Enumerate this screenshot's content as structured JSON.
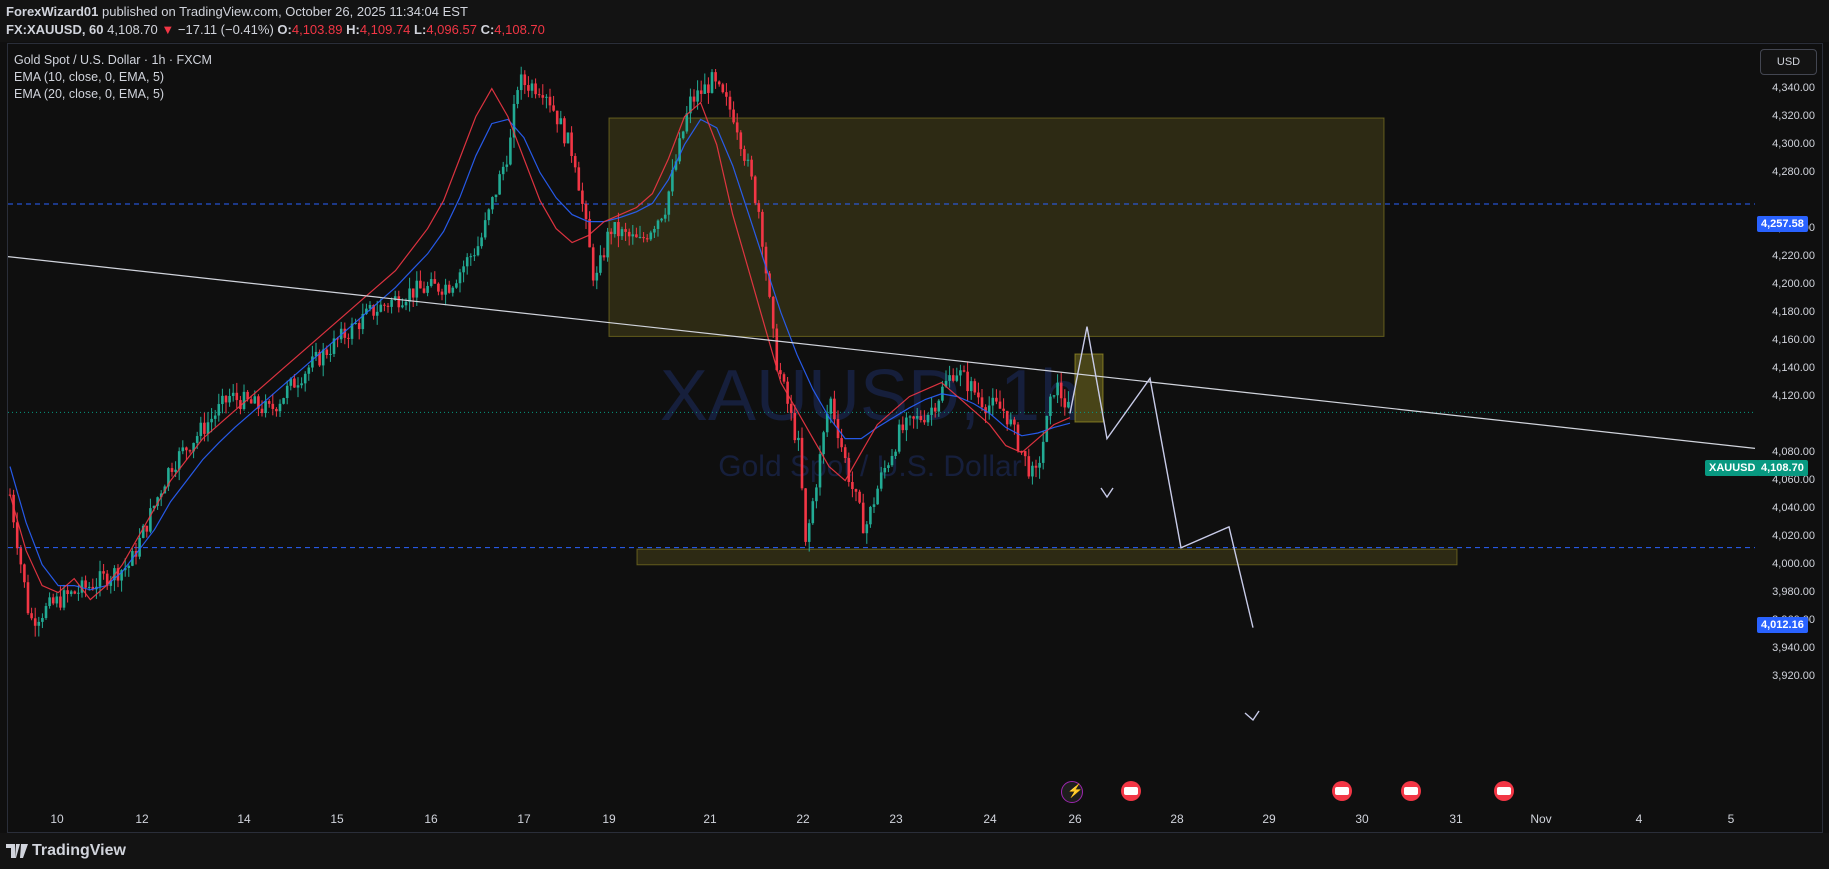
{
  "header": {
    "author": "ForexWizard01",
    "published_text": "published on TradingView.com, October 26, 2025 11:34:04 EST",
    "symbol": "FX:XAUUSD, 60",
    "last": "4,108.70",
    "change_arrow": "▼",
    "change": "−17.11 (−0.41%)",
    "open_label": "O:",
    "open": "4,103.89",
    "high_label": "H:",
    "high": "4,109.74",
    "low_label": "L:",
    "low": "4,096.57",
    "close_label": "C:",
    "close": "4,108.70"
  },
  "legend": {
    "title": "Gold Spot / U.S. Dollar · 1h · FXCM",
    "ema1": "EMA (10, close, 0, EMA, 5)",
    "ema2": "EMA (20, close, 0, EMA, 5)"
  },
  "currency_button": "USD",
  "watermark": {
    "symbol": "XAUUSD, 1h",
    "name": "Gold Spot / U.S. Dollar"
  },
  "price_axis": [
    "4,340.00",
    "4,320.00",
    "4,300.00",
    "4,280.00",
    "4,240.00",
    "4,220.00",
    "4,200.00",
    "4,180.00",
    "4,160.00",
    "4,140.00",
    "4,120.00",
    "4,080.00",
    "4,060.00",
    "4,040.00",
    "4,020.00",
    "4,000.00",
    "3,980.00",
    "3,960.00",
    "3,940.00",
    "3,920.00"
  ],
  "price_tags": {
    "upper_line": "4,257.58",
    "symbol_tag": "XAUUSD",
    "current": "4,108.70",
    "lower_line": "4,012.16"
  },
  "time_axis": [
    "10",
    "12",
    "14",
    "15",
    "16",
    "17",
    "19",
    "21",
    "22",
    "23",
    "24",
    "26",
    "28",
    "29",
    "30",
    "31",
    "Nov",
    "4",
    "5"
  ],
  "footer": {
    "brand": "TradingView"
  },
  "colors": {
    "up": "#22ab94",
    "down": "#f23645",
    "ema10": "#f23645",
    "ema20": "#2962ff",
    "zone": "#b5a82a",
    "hline": "#2962ff",
    "current_tag": "#089981"
  },
  "chart_data": {
    "type": "candlestick",
    "symbol": "XAUUSD",
    "interval": "1h",
    "ylim": [
      3910,
      4350
    ],
    "last_price": 4108.7,
    "horizontal_lines": [
      4257.58,
      4012.16
    ],
    "supply_zone": {
      "from": 4163,
      "to": 4319
    },
    "demand_zone": {
      "from": 4002,
      "to": 4011
    },
    "trendline_start": 4220,
    "trendline_end": 4083,
    "projection_path": [
      4108,
      4170,
      4090,
      4133,
      4012,
      4027,
      3955
    ],
    "path_ema10": [
      4050,
      4010,
      3985,
      3980,
      3990,
      3975,
      3985,
      4000,
      4020,
      4040,
      4060,
      4075,
      4090,
      4100,
      4110,
      4120,
      4130,
      4140,
      4150,
      4160,
      4170,
      4180,
      4190,
      4200,
      4210,
      4225,
      4240,
      4260,
      4290,
      4320,
      4340,
      4320,
      4290,
      4260,
      4240,
      4230,
      4235,
      4245,
      4250,
      4255,
      4265,
      4290,
      4320,
      4330,
      4300,
      4250,
      4210,
      4170,
      4130,
      4110,
      4090,
      4070,
      4060,
      4080,
      4100,
      4110,
      4120,
      4125,
      4130,
      4120,
      4110,
      4100,
      4085,
      4080,
      4090,
      4100,
      4105
    ],
    "path_ema20": [
      4070,
      4030,
      4000,
      3985,
      3985,
      3982,
      3985,
      3995,
      4010,
      4025,
      4045,
      4060,
      4075,
      4087,
      4098,
      4108,
      4118,
      4128,
      4138,
      4148,
      4158,
      4168,
      4178,
      4188,
      4198,
      4210,
      4222,
      4238,
      4262,
      4292,
      4315,
      4318,
      4305,
      4280,
      4262,
      4250,
      4245,
      4245,
      4248,
      4252,
      4258,
      4275,
      4300,
      4318,
      4312,
      4285,
      4250,
      4215,
      4180,
      4150,
      4125,
      4105,
      4090,
      4090,
      4098,
      4105,
      4112,
      4118,
      4122,
      4120,
      4115,
      4108,
      4098,
      4092,
      4094,
      4098,
      4101
    ]
  }
}
